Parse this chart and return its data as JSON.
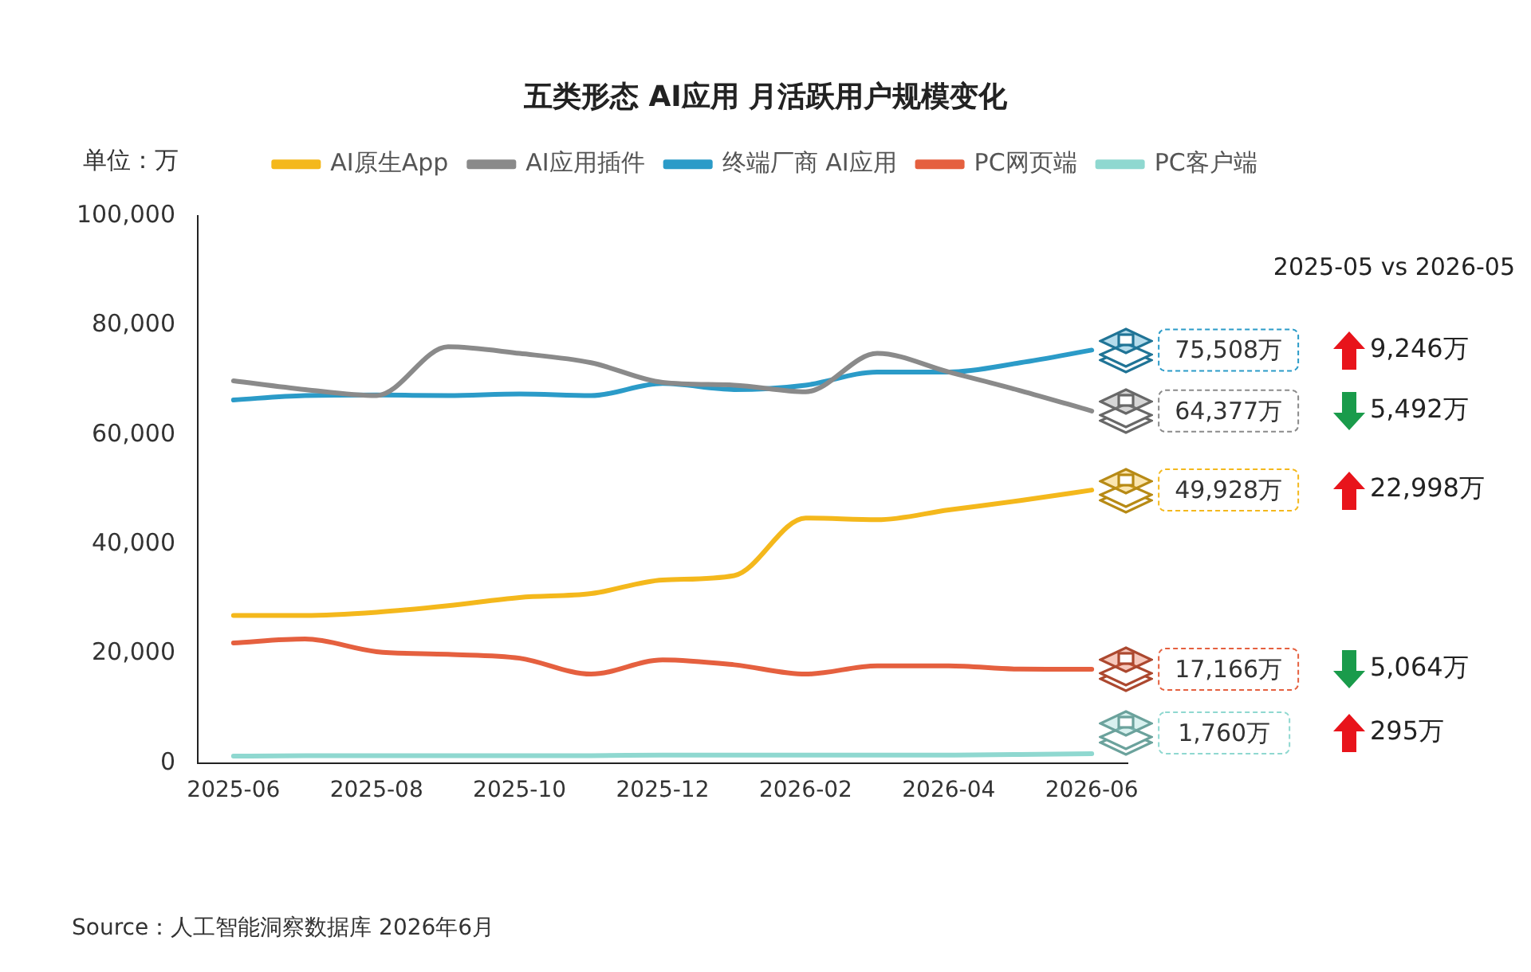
{
  "chart_data": {
    "type": "line",
    "title": "五类形态 AI应用 月活跃用户规模变化",
    "ylabel": "单位：万",
    "categories": [
      "2025-06",
      null,
      "2025-08",
      null,
      "2025-10",
      null,
      "2025-12",
      null,
      "2026-02",
      null,
      "2026-04",
      null,
      "2026-06"
    ],
    "series": [
      {
        "name": "AI原生App",
        "color": "#f4b81c",
        "values": [
          27000,
          27000,
          27600,
          28800,
          30300,
          31000,
          33500,
          34300,
          44800,
          44500,
          46300,
          48000,
          49928
        ],
        "value_labels": [
          null,
          null,
          null,
          null,
          null,
          null,
          null,
          null,
          null,
          null,
          null,
          null,
          "49,928万"
        ]
      },
      {
        "name": "AI应用插件",
        "color": "#8a8a8a",
        "values": [
          69900,
          68300,
          67200,
          76100,
          74900,
          73200,
          69600,
          69100,
          67900,
          74900,
          71500,
          68100,
          64377
        ],
        "value_labels": [
          null,
          null,
          null,
          null,
          null,
          null,
          null,
          null,
          null,
          null,
          null,
          null,
          "64,377万"
        ]
      },
      {
        "name": "终端厂商 AI应用",
        "color": "#2b9bc8",
        "values": [
          66400,
          67200,
          67300,
          67200,
          67500,
          67200,
          69400,
          68300,
          69100,
          71500,
          71500,
          73200,
          75508
        ],
        "value_labels": [
          null,
          null,
          null,
          null,
          null,
          null,
          null,
          null,
          null,
          null,
          null,
          null,
          "75,508万"
        ]
      },
      {
        "name": "PC网页端",
        "color": "#e5603f",
        "values": [
          22000,
          22700,
          20400,
          19900,
          19200,
          16300,
          18900,
          18000,
          16300,
          17800,
          17800,
          17200,
          17166
        ],
        "value_labels": [
          null,
          null,
          null,
          null,
          null,
          null,
          null,
          null,
          null,
          null,
          null,
          null,
          "17,166万"
        ]
      },
      {
        "name": "PC客户端",
        "color": "#8fd8d0",
        "values": [
          1300,
          1400,
          1400,
          1400,
          1400,
          1400,
          1500,
          1500,
          1500,
          1500,
          1500,
          1600,
          1760
        ],
        "value_labels": [
          null,
          null,
          null,
          null,
          null,
          null,
          null,
          null,
          null,
          null,
          null,
          null,
          "1,760万"
        ]
      }
    ],
    "ylim": [
      0,
      100000
    ],
    "yticks": [
      0,
      {
        "value": 20000,
        "label": "20,000"
      },
      {
        "value": 40000,
        "label": "40,000"
      },
      {
        "value": 60000,
        "label": "60,000"
      },
      {
        "value": 80000,
        "label": "80,000"
      },
      {
        "value": 100000,
        "label": "100,000"
      }
    ],
    "legend": "top",
    "marker": "none",
    "grid": false,
    "annotations": [
      "2025-05 vs 2026-05",
      "9,246万",
      "5,492万",
      "22,998万",
      "5,064万",
      "295万",
      "Source：人工智能洞察数据库 2026年6月"
    ]
  }
}
